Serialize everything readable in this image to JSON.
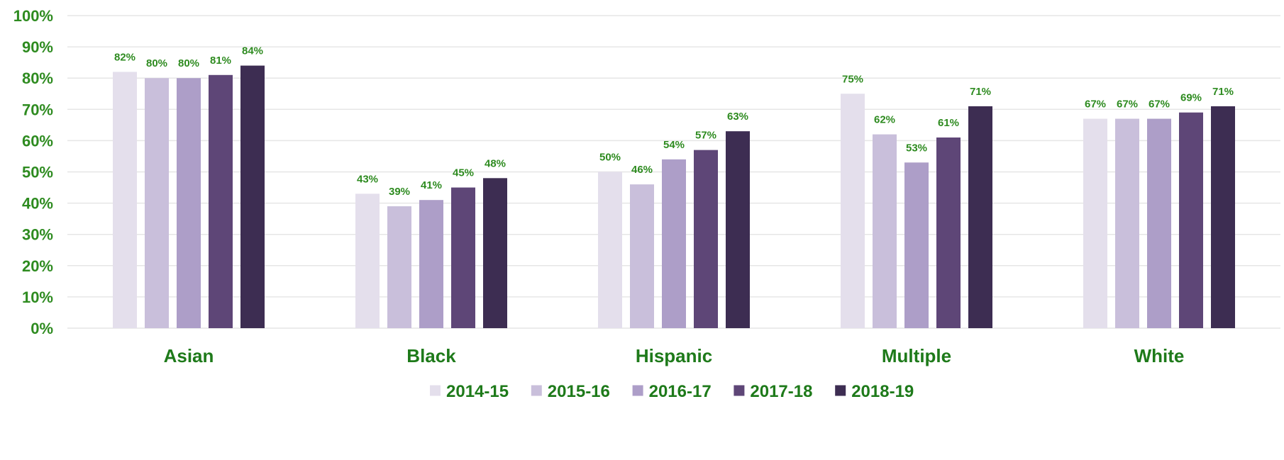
{
  "chart_data": {
    "type": "bar",
    "title": "",
    "xlabel": "",
    "ylabel": "",
    "categories": [
      "Asian",
      "Black",
      "Hispanic",
      "Multiple",
      "White"
    ],
    "series": [
      {
        "name": "2014-15",
        "color": "#e4dfec",
        "values": [
          82,
          43,
          50,
          75,
          67
        ],
        "labels": [
          "82%",
          "43%",
          "50%",
          "75%",
          "67%"
        ]
      },
      {
        "name": "2015-16",
        "color": "#c9bfdb",
        "values": [
          80,
          39,
          46,
          62,
          67
        ],
        "labels": [
          "80%",
          "39%",
          "46%",
          "62%",
          "67%"
        ]
      },
      {
        "name": "2016-17",
        "color": "#ad9ec8",
        "values": [
          80,
          41,
          54,
          53,
          67
        ],
        "labels": [
          "80%",
          "41%",
          "54%",
          "53%",
          "67%"
        ]
      },
      {
        "name": "2017-18",
        "color": "#5e4677",
        "values": [
          81,
          45,
          57,
          61,
          69
        ],
        "labels": [
          "81%",
          "45%",
          "57%",
          "61%",
          "69%"
        ]
      },
      {
        "name": "2018-19",
        "color": "#3d2d52",
        "values": [
          84,
          48,
          63,
          71,
          71
        ],
        "labels": [
          "84%",
          "48%",
          "63%",
          "71%",
          "71%"
        ]
      }
    ],
    "ylim": [
      0,
      100
    ],
    "yticks": [
      "0%",
      "10%",
      "20%",
      "30%",
      "40%",
      "50%",
      "60%",
      "70%",
      "80%",
      "90%",
      "100%"
    ],
    "grid": true,
    "legend_position": "bottom",
    "label_color": "#2e8b20",
    "category_label_color": "#1e7a1a",
    "gridline_color": "#e6e6e6"
  }
}
